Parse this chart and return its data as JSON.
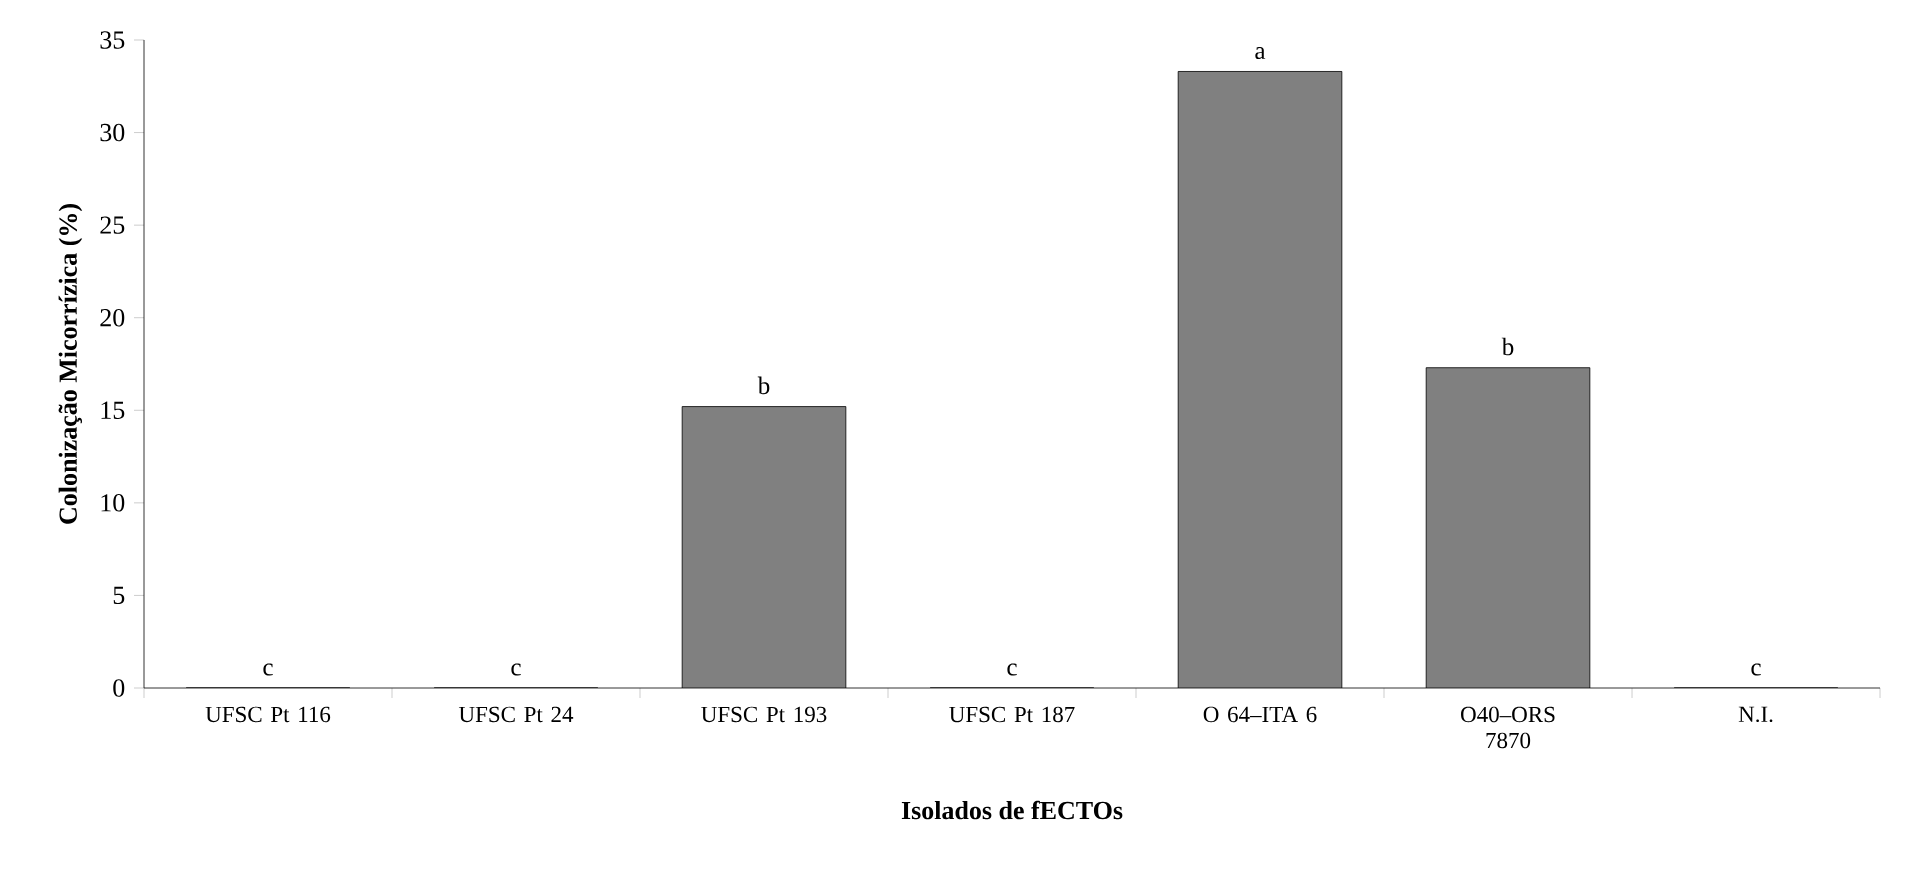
{
  "chart_data": {
    "type": "bar",
    "xlabel": "Isolados de fECTOs",
    "ylabel": "Colonização Micorrízica (%)",
    "categories": [
      "UFSC Pt 116",
      "UFSC Pt 24",
      "UFSC Pt 193",
      "UFSC Pt 187",
      "O 64–ITA 6",
      "O40–ORS 7870",
      "N.I."
    ],
    "values": [
      0,
      0,
      15.2,
      0,
      33.3,
      17.3,
      0
    ],
    "color": "#808080",
    "ylim": [
      0,
      35
    ],
    "yticks": [
      0,
      5,
      10,
      15,
      20,
      25,
      30,
      35
    ],
    "grid": false,
    "annotations": [
      {
        "text": "c",
        "x": "UFSC Pt 116",
        "y": 0
      },
      {
        "text": "c",
        "x": "UFSC Pt 24",
        "y": 0
      },
      {
        "text": "b",
        "x": "UFSC Pt 193",
        "y": 15.2
      },
      {
        "text": "c",
        "x": "UFSC Pt 187",
        "y": 0
      },
      {
        "text": "a",
        "x": "O 64–ITA 6",
        "y": 33.3
      },
      {
        "text": "b",
        "x": "O40–ORS 7870",
        "y": 17.3
      },
      {
        "text": "c",
        "x": "N.I.",
        "y": 0
      }
    ]
  }
}
